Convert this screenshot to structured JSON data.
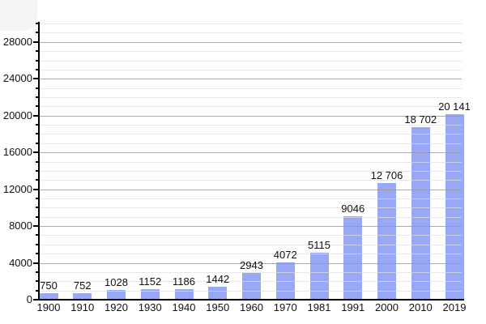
{
  "chart_data": {
    "type": "bar",
    "title": "",
    "xlabel": "",
    "ylabel": "",
    "categories": [
      "1900",
      "1910",
      "1920",
      "1930",
      "1940",
      "1950",
      "1960",
      "1970",
      "1981",
      "1991",
      "2000",
      "2010",
      "2019"
    ],
    "values": [
      750,
      752,
      1028,
      1152,
      1186,
      1442,
      2943,
      4072,
      5115,
      9046,
      12706,
      18702,
      20141
    ],
    "value_labels": [
      "750",
      "752",
      "1028",
      "1152",
      "1186",
      "1442",
      "2943",
      "4072",
      "5115",
      "9046",
      "12 706",
      "18 702",
      "20 141"
    ],
    "ylim": [
      0,
      30000
    ],
    "ytick_minor_step": 1000,
    "ytick_major_step": 4000,
    "ytick_labels": [
      "0",
      "4000",
      "8000",
      "12000",
      "16000",
      "20000",
      "24000",
      "28000"
    ],
    "ytick_label_values": [
      0,
      4000,
      8000,
      12000,
      16000,
      20000,
      24000,
      28000
    ],
    "grid": "on",
    "legend": "none",
    "colors": {
      "bar": "#99a8f5",
      "grid_minor": "#dedede",
      "grid_major": "#969696",
      "axis": "#000000",
      "text": "#111111"
    }
  }
}
